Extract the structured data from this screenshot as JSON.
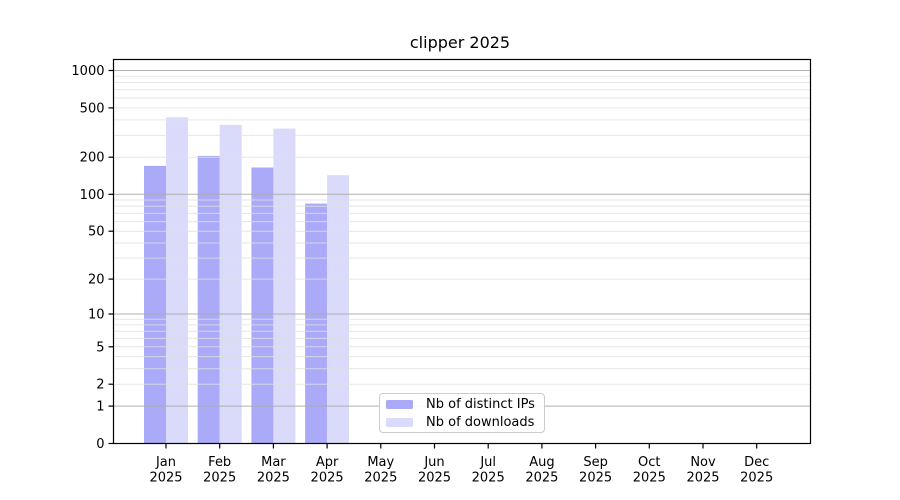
{
  "chart_data": {
    "type": "bar",
    "title": "clipper 2025",
    "categories": [
      "Jan",
      "Feb",
      "Mar",
      "Apr",
      "May",
      "Jun",
      "Jul",
      "Aug",
      "Sep",
      "Oct",
      "Nov",
      "Dec"
    ],
    "x_year_label": "2025",
    "series": [
      {
        "name": "Nb of distinct IPs",
        "color": "#aaaaf8",
        "values": [
          170,
          205,
          165,
          84,
          null,
          null,
          null,
          null,
          null,
          null,
          null,
          null
        ]
      },
      {
        "name": "Nb of downloads",
        "color": "#dadafa",
        "values": [
          420,
          365,
          340,
          143,
          null,
          null,
          null,
          null,
          null,
          null,
          null,
          null
        ]
      }
    ],
    "xlabel": "",
    "ylabel": "",
    "y_axis": {
      "scale": "log1p",
      "ticks": [
        0,
        1,
        2,
        5,
        10,
        20,
        50,
        100,
        200,
        500,
        1000
      ],
      "major_grid_values": [
        1,
        10,
        100,
        1000
      ],
      "minor_grid_decades": [
        1,
        10,
        100
      ],
      "ylim": [
        0,
        1235
      ]
    },
    "grid": true,
    "legend_position": "inside-bottom-center"
  },
  "colors": {
    "bar_distinct_ips": "#aaaaf8",
    "bar_downloads": "#dadafa",
    "major_grid": "#aaaaaa",
    "minor_grid": "#e0e0e0",
    "axis": "#000000",
    "tick_text": "#000000",
    "legend_border": "#cccccc",
    "background": "#ffffff"
  }
}
